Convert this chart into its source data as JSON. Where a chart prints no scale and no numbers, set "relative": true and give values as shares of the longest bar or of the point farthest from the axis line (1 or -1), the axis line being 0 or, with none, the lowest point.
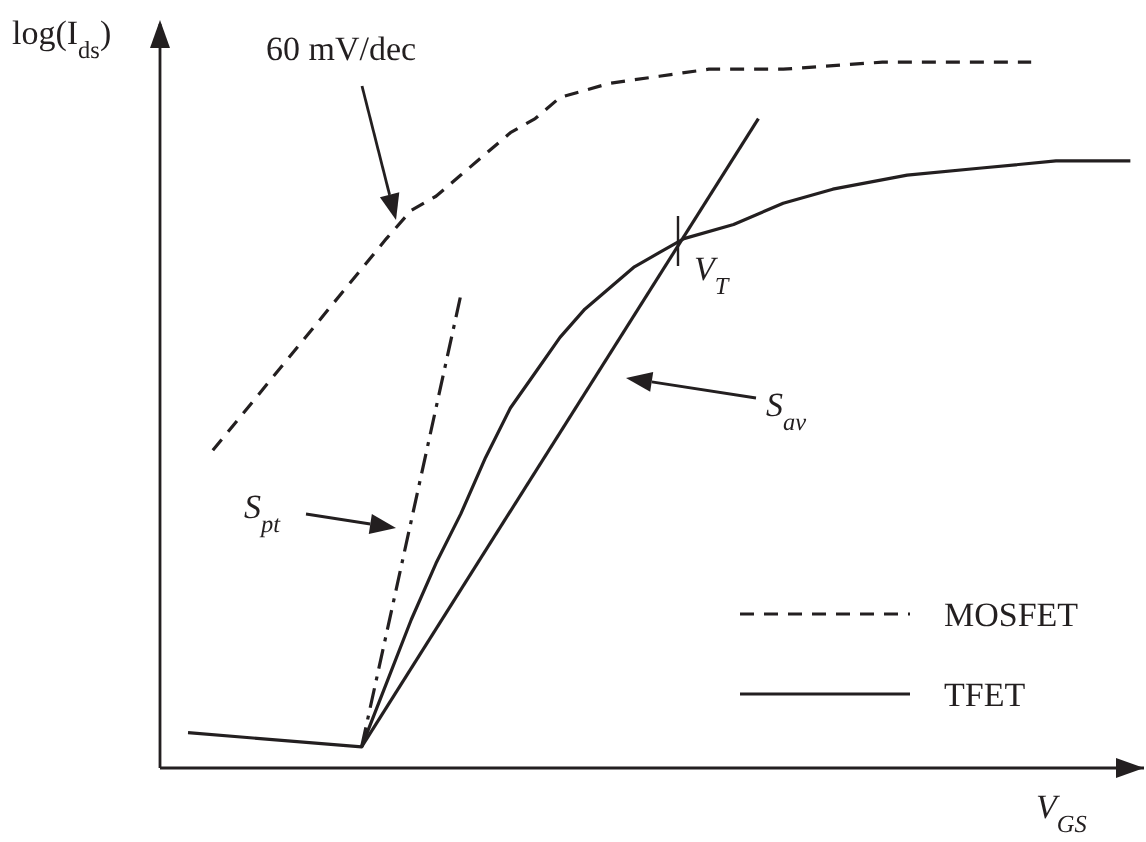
{
  "chart_data": {
    "type": "line",
    "relative": true,
    "xlabel": "V$_{GS}$",
    "ylabel": "log(I$_{ds}$)",
    "categories": [
      null,
      null,
      null,
      null,
      null,
      null,
      null,
      null,
      null,
      null,
      null,
      null,
      null,
      null,
      null,
      null,
      null,
      null,
      null,
      null,
      null,
      null,
      null,
      null,
      null,
      null,
      null,
      null,
      null,
      null,
      null,
      null,
      null,
      null,
      null,
      null,
      null,
      null,
      null
    ],
    "series": [
      {
        "name": "MOSFET",
        "color": "#231f20",
        "line_style": "dashed",
        "values": [
          null,
          0.45,
          null,
          null,
          null,
          null,
          null,
          null,
          0.75,
          0.79,
          0.81,
          0.84,
          0.87,
          0.9,
          0.92,
          0.95,
          0.96,
          0.97,
          null,
          0.98,
          null,
          0.99,
          null,
          null,
          0.99,
          null,
          null,
          null,
          1,
          null,
          null,
          null,
          null,
          null,
          1,
          null,
          null,
          null,
          null
        ]
      },
      {
        "name": "TFET",
        "color": "#231f20",
        "line_style": "solid",
        "values": [
          0.05,
          null,
          null,
          null,
          null,
          null,
          null,
          0.03,
          0.12,
          0.21,
          0.29,
          0.36,
          0.44,
          0.51,
          0.56,
          0.61,
          0.65,
          0.68,
          0.71,
          0.73,
          0.75,
          null,
          0.77,
          null,
          0.8,
          null,
          0.82,
          null,
          null,
          0.84,
          null,
          null,
          0.85,
          null,
          null,
          0.86,
          null,
          null,
          0.86
        ]
      },
      {
        "color": "#231f20",
        "line_style": "dashdot",
        "values": [
          null,
          null,
          null,
          null,
          null,
          null,
          null,
          0.03,
          null,
          null,
          null,
          0.67,
          null,
          null,
          null,
          null,
          null,
          null,
          null,
          null,
          null,
          null,
          null,
          null,
          null,
          null,
          null,
          null,
          null,
          null,
          null,
          null,
          null,
          null,
          null,
          null,
          null,
          null,
          null
        ]
      },
      {
        "color": "#231f20",
        "line_style": "solid",
        "values": [
          null,
          null,
          null,
          null,
          null,
          null,
          null,
          0.03,
          null,
          null,
          null,
          null,
          null,
          null,
          null,
          null,
          null,
          null,
          null,
          null,
          null,
          null,
          null,
          0.92,
          null,
          null,
          null,
          null,
          null,
          null,
          null,
          null,
          null,
          null,
          null,
          null,
          null,
          null,
          null
        ]
      }
    ],
    "annotations": [
      "60 mV/dec",
      "V$_{T}$",
      "S$_{pt}$",
      "S$_{av}$"
    ],
    "legend": "bottom right",
    "marker": "none"
  }
}
